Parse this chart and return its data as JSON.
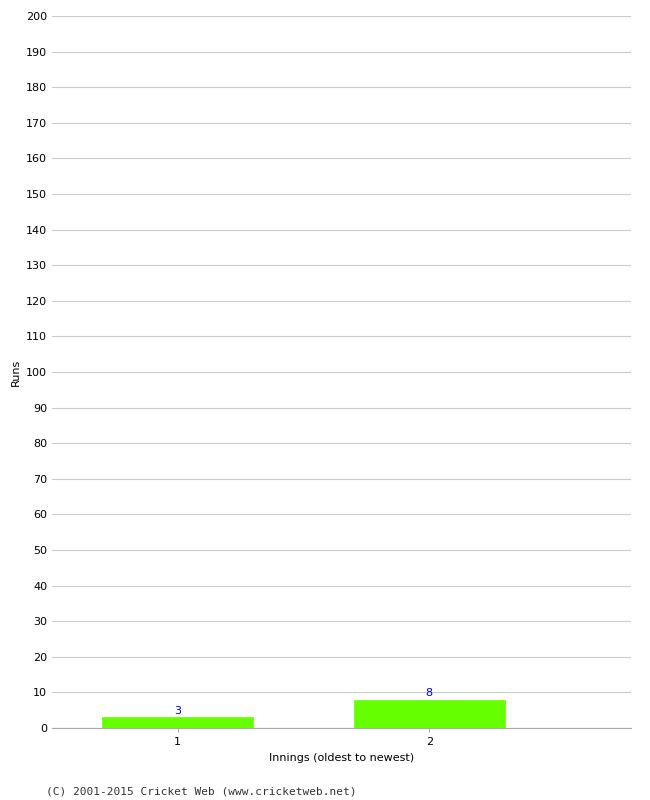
{
  "innings": [
    1,
    2
  ],
  "runs": [
    3,
    8
  ],
  "bar_color": "#66ff00",
  "bar_edgecolor": "#66ff00",
  "xlabel": "Innings (oldest to newest)",
  "ylabel": "Runs",
  "ylim": [
    0,
    200
  ],
  "ytick_step": 10,
  "background_color": "#ffffff",
  "grid_color": "#cccccc",
  "label_color": "#0000cc",
  "footer": "(C) 2001-2015 Cricket Web (www.cricketweb.net)",
  "label_fontsize": 8,
  "axis_fontsize": 8,
  "footer_fontsize": 8,
  "fig_width": 6.5,
  "fig_height": 8.0,
  "dpi": 100
}
